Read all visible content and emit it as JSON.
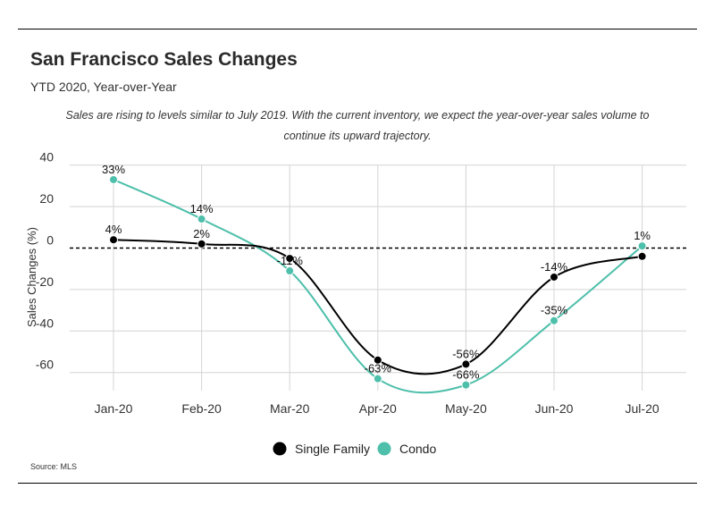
{
  "header": {
    "title": "San Francisco Sales Changes",
    "subtitle": "YTD 2020, Year-over-Year",
    "note": "Sales are rising to levels similar to July 2019. With the current inventory, we expect the year-over-year sales volume to continue its upward trajectory."
  },
  "footer": {
    "source": "Source: MLS"
  },
  "chart_data": {
    "type": "line",
    "categories": [
      "Jan-20",
      "Feb-20",
      "Mar-20",
      "Apr-20",
      "May-20",
      "Jun-20",
      "Jul-20"
    ],
    "series": [
      {
        "name": "Single Family",
        "color": "#000000",
        "values": [
          4,
          2,
          -5,
          -54,
          -56,
          -14,
          -4
        ],
        "labels": [
          "4%",
          "2%",
          "",
          "",
          "-56%",
          "-14%",
          ""
        ]
      },
      {
        "name": "Condo",
        "color": "#4dbfaa",
        "values": [
          33,
          14,
          -11,
          -63,
          -66,
          -35,
          1
        ],
        "labels": [
          "33%",
          "14%",
          "-11%",
          "-63%",
          "-66%",
          "-35%",
          "1%"
        ]
      }
    ],
    "yticks": [
      40,
      20,
      0,
      -20,
      -40,
      -60
    ],
    "ylim": [
      -68,
      40
    ],
    "ylabel": "Sales Changes (%)",
    "xlabel": "",
    "grid": true,
    "zero_line": "dashed",
    "legend": "bottom-center"
  }
}
